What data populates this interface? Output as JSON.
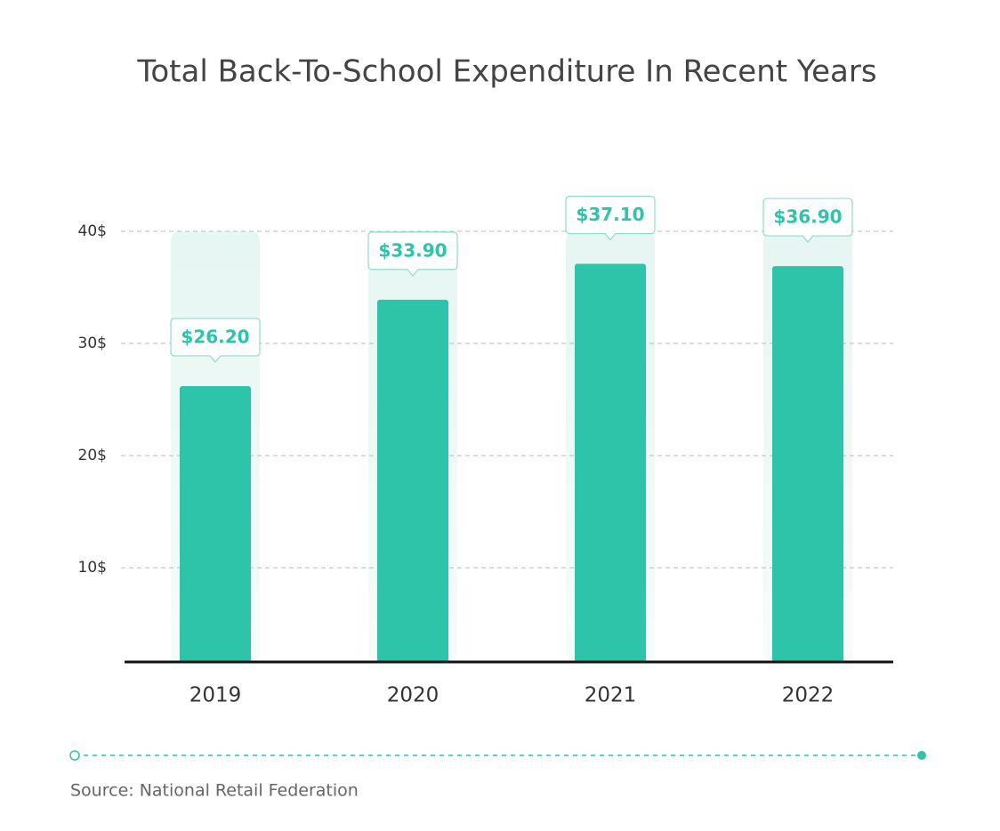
{
  "chart_data": {
    "type": "bar",
    "title": "Total Back-To-School Expenditure In Recent Years",
    "categories": [
      "2019",
      "2020",
      "2021",
      "2022"
    ],
    "values": [
      26.2,
      33.9,
      37.1,
      36.9
    ],
    "value_labels": [
      "$26.20",
      "$33.90",
      "$37.10",
      "$36.90"
    ],
    "color": "#2ec4a9",
    "ylim": [
      1.6,
      40
    ],
    "yticks": [
      {
        "value": 10,
        "label": "10$"
      },
      {
        "value": 20,
        "label": "20$"
      },
      {
        "value": 30,
        "label": "30$"
      },
      {
        "value": 40,
        "label": "40$"
      }
    ],
    "grid": true,
    "source": "Source: National Retail Federation"
  }
}
